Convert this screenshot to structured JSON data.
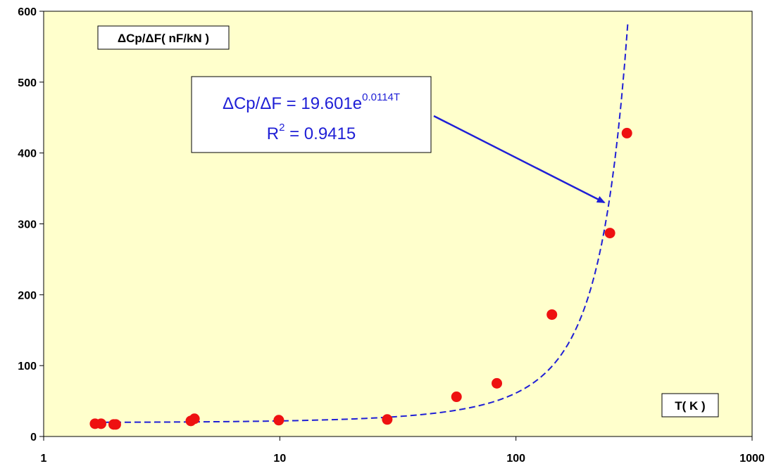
{
  "chart_data": {
    "type": "scatter",
    "x_scale": "log",
    "xlim": [
      1,
      1000
    ],
    "ylim": [
      0,
      600
    ],
    "x_ticks": [
      1,
      10,
      100,
      1000
    ],
    "y_ticks": [
      0,
      100,
      200,
      300,
      400,
      500,
      600
    ],
    "x_tick_labels": [
      "1",
      "10",
      "100",
      "1000"
    ],
    "y_tick_labels": [
      "0",
      "100",
      "200",
      "300",
      "400",
      "500",
      "600"
    ],
    "ylabel": "ΔCp/ΔF( nF/kN )",
    "xlabel": "T( K )",
    "grid": false,
    "plot_background": "#ffffcc",
    "marker_color": "#ee1111",
    "fit_color": "#1f1fd6",
    "series": [
      {
        "values": [
          {
            "x": 1.65,
            "y": 18
          },
          {
            "x": 1.75,
            "y": 18
          },
          {
            "x": 1.98,
            "y": 17
          },
          {
            "x": 2.02,
            "y": 17
          },
          {
            "x": 4.2,
            "y": 22
          },
          {
            "x": 4.35,
            "y": 25
          },
          {
            "x": 9.9,
            "y": 23
          },
          {
            "x": 28.5,
            "y": 24
          },
          {
            "x": 56,
            "y": 56
          },
          {
            "x": 83,
            "y": 75
          },
          {
            "x": 142,
            "y": 172
          },
          {
            "x": 250,
            "y": 287
          },
          {
            "x": 295,
            "y": 428
          }
        ]
      }
    ],
    "fit": {
      "model": "exponential",
      "a": 19.601,
      "b": 0.0114,
      "x_range": [
        1.65,
        298
      ],
      "line_style": "dashed"
    },
    "annotation": {
      "eq_prefix": "ΔCp/ΔF = 19.601e",
      "eq_exponent": "0.0114T",
      "r2_prefix": "R",
      "r2_power": "2",
      "r2_suffix": " = 0.9415"
    }
  }
}
